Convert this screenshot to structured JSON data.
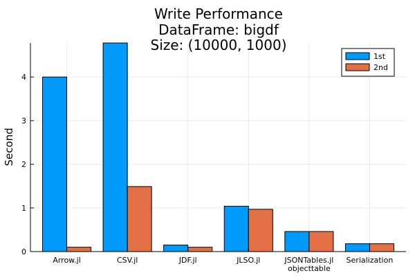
{
  "chart_data": {
    "type": "bar",
    "title_lines": [
      "Write Performance",
      "DataFrame: bigdf",
      "Size: (10000, 1000)"
    ],
    "xlabel": "",
    "ylabel": "Second",
    "categories": [
      [
        "Arrow.jl"
      ],
      [
        "CSV.jl"
      ],
      [
        "JDF.jl"
      ],
      [
        "JLSO.jl"
      ],
      [
        "JSONTables.jl",
        "objecttable"
      ],
      [
        "Serialization"
      ]
    ],
    "series": [
      {
        "name": "1st",
        "color": "#009AFA",
        "values": [
          4.0,
          4.78,
          0.15,
          1.04,
          0.46,
          0.18
        ]
      },
      {
        "name": "2nd",
        "color": "#E26F46",
        "values": [
          0.1,
          1.49,
          0.1,
          0.97,
          0.46,
          0.18
        ]
      }
    ],
    "ylim": [
      0,
      4.78
    ],
    "yticks": [
      0,
      1,
      2,
      3,
      4
    ],
    "grid": true,
    "legend_position": "top-right"
  }
}
